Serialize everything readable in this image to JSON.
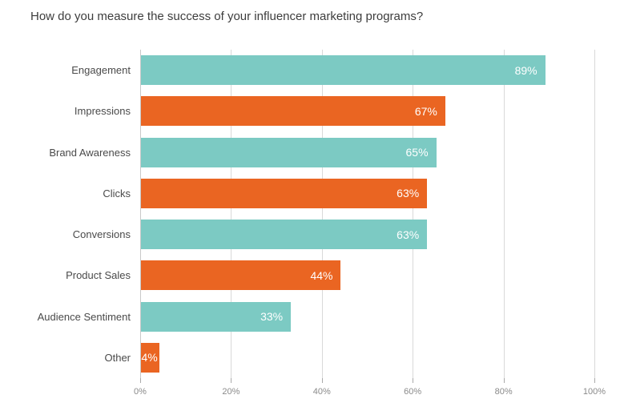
{
  "chart_data": {
    "type": "bar",
    "orientation": "horizontal",
    "title": "How do you measure the success of your influencer marketing programs?",
    "categories": [
      "Engagement",
      "Impressions",
      "Brand Awareness",
      "Clicks",
      "Conversions",
      "Product Sales",
      "Audience Sentiment",
      "Other"
    ],
    "values": [
      89,
      67,
      65,
      63,
      63,
      44,
      33,
      4
    ],
    "value_labels": [
      "89%",
      "67%",
      "65%",
      "63%",
      "63%",
      "44%",
      "33%",
      "4%"
    ],
    "bar_colors": [
      "#7CCAC3",
      "#EA6522",
      "#7CCAC3",
      "#EA6522",
      "#7CCAC3",
      "#EA6522",
      "#7CCAC3",
      "#EA6522"
    ],
    "xlabel": "",
    "ylabel": "",
    "xlim": [
      0,
      100
    ],
    "xticks": [
      0,
      20,
      40,
      60,
      80,
      100
    ],
    "xtick_labels": [
      "0%",
      "20%",
      "40%",
      "60%",
      "80%",
      "100%"
    ],
    "grid": "vertical",
    "legend": "none",
    "colors": {
      "teal": "#7CCAC3",
      "orange": "#EA6522"
    }
  }
}
